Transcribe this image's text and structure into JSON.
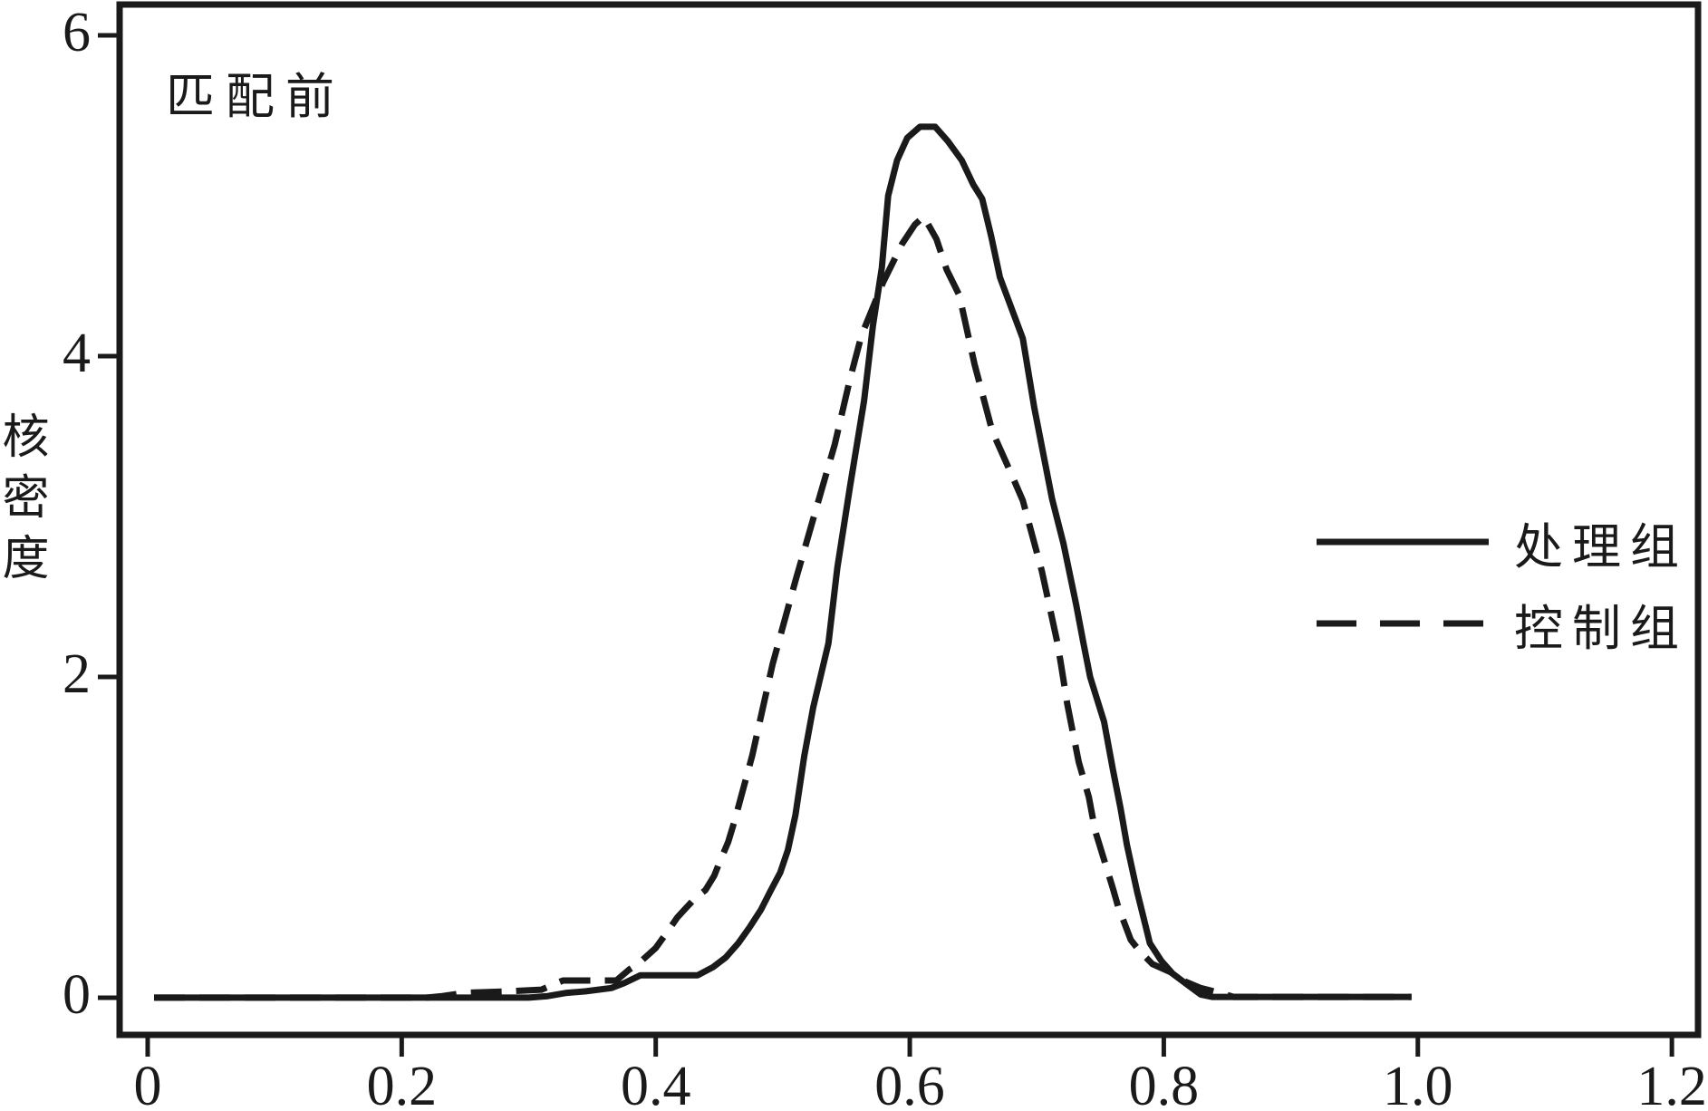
{
  "figure": {
    "background": "#ffffff",
    "line_color": "#1a1a1a"
  },
  "chart_data": {
    "type": "line",
    "title": "匹配前",
    "xlabel": "",
    "ylabel": "核密度",
    "xlim": [
      -0.0221,
      1.2206
    ],
    "ylim": [
      -0.232,
      6.192
    ],
    "grid": false,
    "legend_position": "inside-right-middle",
    "x_ticks": {
      "values": [
        0,
        0.2,
        0.4,
        0.6,
        0.8,
        1.0,
        1.2
      ],
      "labels": [
        "0",
        "0.2",
        "0.4",
        "0.6",
        "0.8",
        "1.0",
        "1.2"
      ]
    },
    "y_ticks": {
      "values": [
        0,
        2,
        4,
        6
      ],
      "labels": [
        "0",
        "2",
        "4",
        "6"
      ]
    },
    "series": [
      {
        "name": "处理组",
        "style": "solid",
        "points": [
          [
            0.005,
            0
          ],
          [
            0.3,
            0
          ],
          [
            0.315,
            0.01
          ],
          [
            0.33,
            0.03
          ],
          [
            0.345,
            0.04
          ],
          [
            0.365,
            0.06
          ],
          [
            0.375,
            0.09
          ],
          [
            0.388,
            0.14
          ],
          [
            0.433,
            0.14
          ],
          [
            0.445,
            0.19
          ],
          [
            0.455,
            0.25
          ],
          [
            0.465,
            0.34
          ],
          [
            0.474,
            0.44
          ],
          [
            0.483,
            0.55
          ],
          [
            0.49,
            0.66
          ],
          [
            0.498,
            0.78
          ],
          [
            0.504,
            0.92
          ],
          [
            0.51,
            1.14
          ],
          [
            0.517,
            1.51
          ],
          [
            0.524,
            1.81
          ],
          [
            0.536,
            2.21
          ],
          [
            0.543,
            2.68
          ],
          [
            0.553,
            3.19
          ],
          [
            0.564,
            3.72
          ],
          [
            0.571,
            4.19
          ],
          [
            0.578,
            4.55
          ],
          [
            0.583,
            5.0
          ],
          [
            0.59,
            5.22
          ],
          [
            0.598,
            5.36
          ],
          [
            0.608,
            5.43
          ],
          [
            0.62,
            5.43
          ],
          [
            0.63,
            5.34
          ],
          [
            0.641,
            5.22
          ],
          [
            0.65,
            5.07
          ],
          [
            0.657,
            4.98
          ],
          [
            0.664,
            4.75
          ],
          [
            0.671,
            4.49
          ],
          [
            0.689,
            4.11
          ],
          [
            0.698,
            3.68
          ],
          [
            0.712,
            3.11
          ],
          [
            0.721,
            2.83
          ],
          [
            0.731,
            2.45
          ],
          [
            0.737,
            2.2
          ],
          [
            0.742,
            2.0
          ],
          [
            0.753,
            1.72
          ],
          [
            0.76,
            1.42
          ],
          [
            0.766,
            1.18
          ],
          [
            0.771,
            0.95
          ],
          [
            0.779,
            0.66
          ],
          [
            0.784,
            0.5
          ],
          [
            0.789,
            0.34
          ],
          [
            0.798,
            0.23
          ],
          [
            0.807,
            0.15
          ],
          [
            0.817,
            0.09
          ],
          [
            0.829,
            0.02
          ],
          [
            0.838,
            0.005
          ],
          [
            0.995,
            0.005
          ]
        ]
      },
      {
        "name": "控制组",
        "style": "dashed",
        "points": [
          [
            0.005,
            0
          ],
          [
            0.22,
            0
          ],
          [
            0.232,
            0.01
          ],
          [
            0.25,
            0.03
          ],
          [
            0.285,
            0.04
          ],
          [
            0.31,
            0.05
          ],
          [
            0.327,
            0.107
          ],
          [
            0.369,
            0.107
          ],
          [
            0.379,
            0.175
          ],
          [
            0.386,
            0.21
          ],
          [
            0.4,
            0.31
          ],
          [
            0.41,
            0.42
          ],
          [
            0.417,
            0.5
          ],
          [
            0.424,
            0.56
          ],
          [
            0.431,
            0.62
          ],
          [
            0.439,
            0.67
          ],
          [
            0.446,
            0.76
          ],
          [
            0.45,
            0.84
          ],
          [
            0.457,
            0.97
          ],
          [
            0.462,
            1.1
          ],
          [
            0.476,
            1.51
          ],
          [
            0.492,
            2.08
          ],
          [
            0.51,
            2.6
          ],
          [
            0.526,
            3.04
          ],
          [
            0.541,
            3.45
          ],
          [
            0.553,
            3.86
          ],
          [
            0.562,
            4.13
          ],
          [
            0.579,
            4.46
          ],
          [
            0.594,
            4.7
          ],
          [
            0.604,
            4.82
          ],
          [
            0.611,
            4.87
          ],
          [
            0.621,
            4.73
          ],
          [
            0.629,
            4.54
          ],
          [
            0.639,
            4.38
          ],
          [
            0.651,
            3.95
          ],
          [
            0.665,
            3.53
          ],
          [
            0.678,
            3.3
          ],
          [
            0.689,
            3.1
          ],
          [
            0.704,
            2.66
          ],
          [
            0.716,
            2.22
          ],
          [
            0.719,
            2.08
          ],
          [
            0.724,
            1.83
          ],
          [
            0.733,
            1.47
          ],
          [
            0.741,
            1.25
          ],
          [
            0.746,
            1.04
          ],
          [
            0.76,
            0.68
          ],
          [
            0.764,
            0.57
          ],
          [
            0.774,
            0.36
          ],
          [
            0.781,
            0.29
          ],
          [
            0.791,
            0.21
          ],
          [
            0.805,
            0.16
          ],
          [
            0.817,
            0.1
          ],
          [
            0.829,
            0.06
          ],
          [
            0.844,
            0.03
          ],
          [
            0.855,
            0.005
          ],
          [
            0.995,
            0.005
          ]
        ]
      }
    ]
  }
}
